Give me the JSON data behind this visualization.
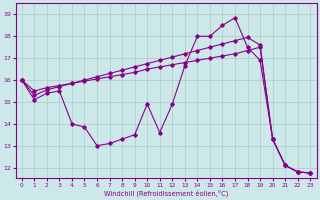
{
  "xlabel": "Windchill (Refroidissement éolien,°C)",
  "background_color": "#cce8e8",
  "line_color": "#880088",
  "grid_color": "#aacccc",
  "x_ticks": [
    0,
    1,
    2,
    3,
    4,
    5,
    6,
    7,
    8,
    9,
    10,
    11,
    12,
    13,
    14,
    15,
    16,
    17,
    18,
    19,
    20,
    21,
    22,
    23
  ],
  "y_ticks": [
    12,
    13,
    14,
    15,
    16,
    17,
    18,
    19
  ],
  "ylim": [
    11.5,
    19.5
  ],
  "xlim": [
    -0.5,
    23.5
  ],
  "s1_x": [
    0,
    1,
    2,
    3,
    4,
    5,
    6,
    7,
    8,
    9,
    10,
    11,
    12,
    13,
    14,
    15,
    16,
    17,
    18,
    19,
    20,
    21,
    22,
    23
  ],
  "s1_y": [
    16.0,
    15.1,
    15.4,
    15.5,
    14.0,
    13.85,
    13.0,
    13.1,
    13.3,
    13.5,
    14.9,
    13.6,
    14.9,
    16.65,
    18.0,
    18.0,
    18.5,
    18.85,
    17.5,
    16.9,
    13.3,
    12.1,
    11.8,
    11.75
  ],
  "s2_x": [
    0,
    1,
    2,
    3,
    4,
    5,
    6,
    7,
    8,
    9,
    10,
    11,
    12,
    13,
    14,
    15,
    16,
    17,
    18,
    19,
    20,
    21,
    22,
    23
  ],
  "s2_y": [
    16.0,
    15.3,
    15.55,
    15.7,
    15.85,
    16.0,
    16.15,
    16.3,
    16.45,
    16.6,
    16.75,
    16.9,
    17.05,
    17.2,
    17.35,
    17.5,
    17.65,
    17.8,
    17.95,
    17.6,
    13.3,
    12.1,
    11.8,
    11.75
  ],
  "s3_x": [
    0,
    1,
    2,
    3,
    4,
    5,
    6,
    7,
    8,
    9,
    10,
    11,
    12,
    13,
    14,
    15,
    16,
    17,
    18,
    19,
    20,
    21,
    22,
    23
  ],
  "s3_y": [
    16.0,
    15.5,
    15.65,
    15.75,
    15.85,
    15.95,
    16.05,
    16.15,
    16.25,
    16.35,
    16.5,
    16.6,
    16.7,
    16.8,
    16.9,
    17.0,
    17.1,
    17.2,
    17.35,
    17.5,
    13.3,
    12.1,
    11.8,
    11.75
  ]
}
